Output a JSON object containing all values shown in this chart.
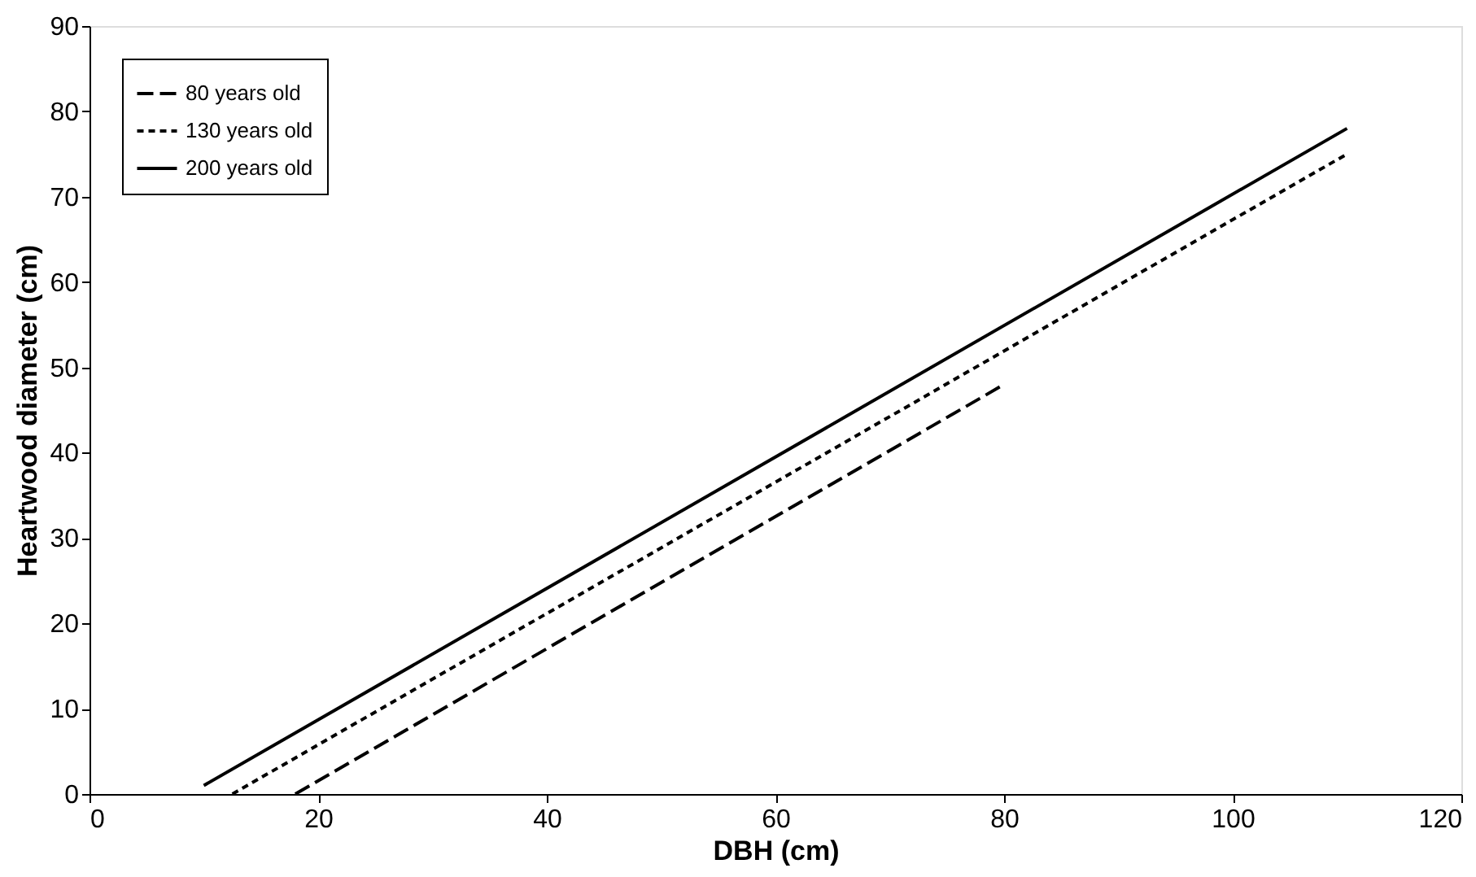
{
  "chart_data": {
    "type": "line",
    "xlabel": "DBH (cm)",
    "ylabel": "Heartwood diameter (cm)",
    "xlim": [
      0,
      120
    ],
    "xticks": [
      0,
      20,
      40,
      60,
      80,
      100,
      120
    ],
    "ylim": [
      0,
      90
    ],
    "yticks": [
      0,
      10,
      20,
      30,
      40,
      50,
      60,
      70,
      80,
      90
    ],
    "grid": false,
    "legend": "top left",
    "marker": "none",
    "series": [
      {
        "name": "80 years old",
        "color": "#000000",
        "line_style": "dashed",
        "x": [
          18,
          80
        ],
        "values": [
          0,
          48
        ]
      },
      {
        "name": "130 years old",
        "color": "#000000",
        "line_style": "dotted",
        "x": [
          12.5,
          110
        ],
        "values": [
          0,
          75
        ]
      },
      {
        "name": "200 years old",
        "color": "#000000",
        "line_style": "solid",
        "x": [
          10,
          110
        ],
        "values": [
          1,
          78
        ]
      }
    ]
  }
}
